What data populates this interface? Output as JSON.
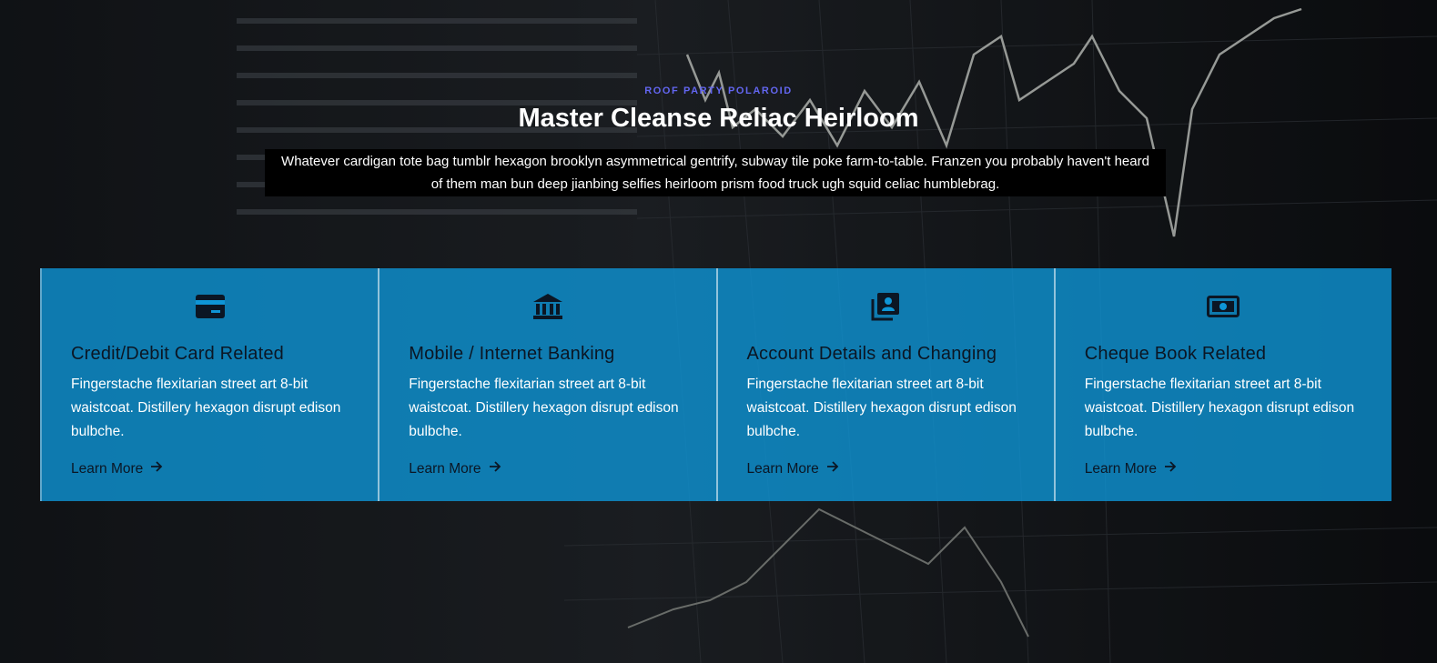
{
  "hero": {
    "eyebrow": "ROOF PARTY POLAROID",
    "title": "Master Cleanse Reliac Heirloom",
    "description": "Whatever cardigan tote bag tumblr hexagon brooklyn asymmetrical gentrify, subway tile poke farm-to-table. Franzen you probably haven't heard of them man bun deep jianbing selfies heirloom prism food truck ugh squid celiac humblebrag."
  },
  "cards": [
    {
      "icon": "credit-card-icon",
      "title": "Credit/Debit Card Related",
      "text": "Fingerstache flexitarian street art 8-bit waistcoat. Distillery hexagon disrupt edison bulbche.",
      "link": "Learn More"
    },
    {
      "icon": "bank-icon",
      "title": "Mobile / Internet Banking",
      "text": "Fingerstache flexitarian street art 8-bit waistcoat. Distillery hexagon disrupt edison bulbche.",
      "link": "Learn More"
    },
    {
      "icon": "account-book-icon",
      "title": "Account Details and Changing",
      "text": "Fingerstache flexitarian street art 8-bit waistcoat. Distillery hexagon disrupt edison bulbche.",
      "link": "Learn More"
    },
    {
      "icon": "cash-icon",
      "title": "Cheque Book Related",
      "text": "Fingerstache flexitarian street art 8-bit waistcoat. Distillery hexagon disrupt edison bulbche.",
      "link": "Learn More"
    }
  ],
  "colors": {
    "accent": "#6366f1",
    "card_bg": "#0e95d6",
    "desc_bg": "#000000"
  }
}
